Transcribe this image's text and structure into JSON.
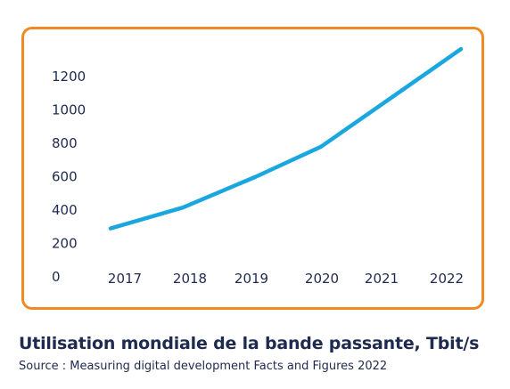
{
  "caption": {
    "title": "Utilisation mondiale de la bande passante, Tbit/s",
    "source": "Source : Measuring digital development Facts and Figures 2022"
  },
  "colors": {
    "frame": "#f08a24",
    "line": "#1aa7e0",
    "text": "#1e2a4e"
  },
  "chart_data": {
    "type": "line",
    "title": "Utilisation mondiale de la bande passante, Tbit/s",
    "xlabel": "",
    "ylabel": "",
    "categories": [
      "2017",
      "2018",
      "2019",
      "2020",
      "2021",
      "2022"
    ],
    "series": [
      {
        "values": [
          290,
          415,
          600,
          780,
          1070,
          1365
        ]
      }
    ],
    "y_ticks": [
      "0",
      "200",
      "400",
      "600",
      "800",
      "1000",
      "1200"
    ],
    "ylim": [
      0,
      1400
    ],
    "grid": false,
    "legend": "none"
  }
}
